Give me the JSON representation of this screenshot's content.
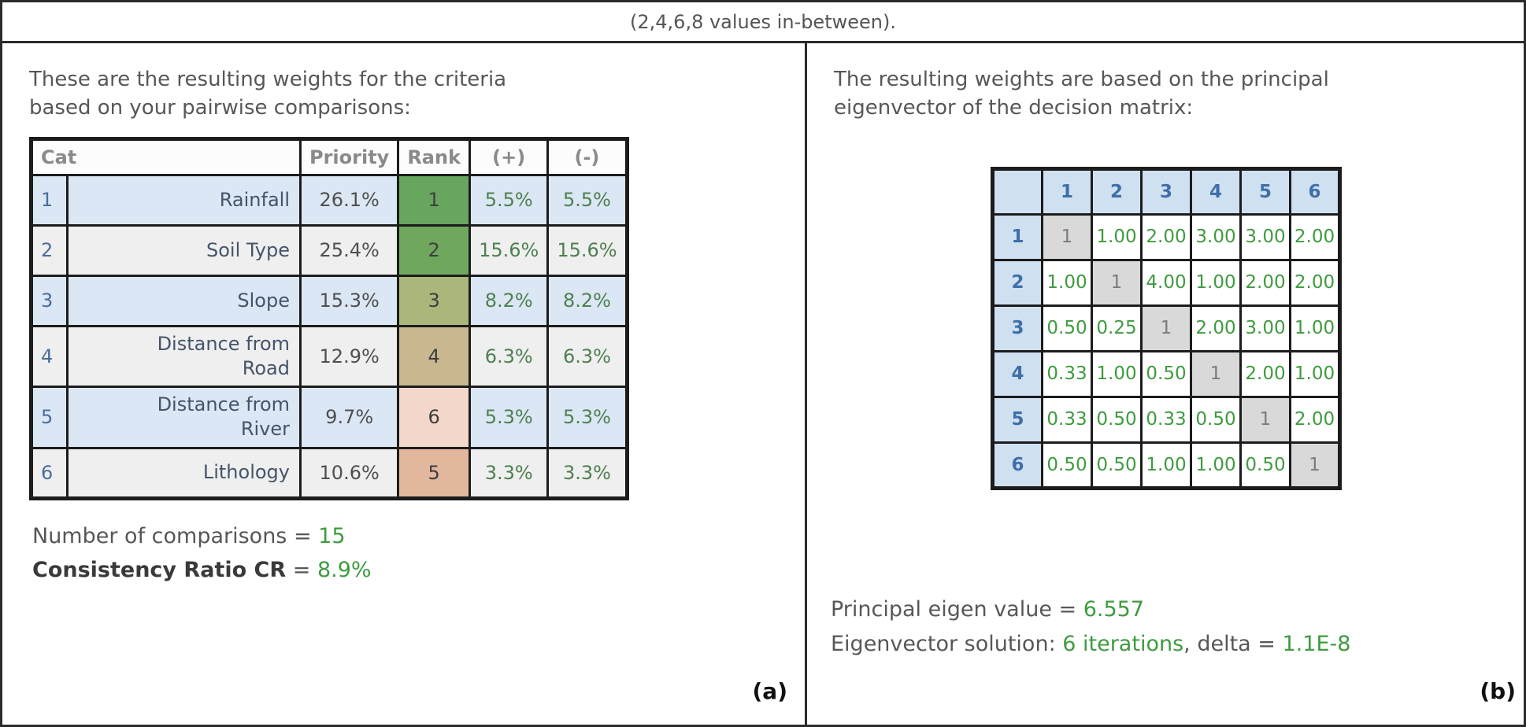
{
  "top_note": "(2,4,6,8 values in-between).",
  "colors": {
    "muted_text": "#575757",
    "header_gray": "#8a8a8a",
    "index_blue": "#4a6d9e",
    "name_text": "#44546a",
    "row_blue": "#dbe7f4",
    "row_gray": "#efefef",
    "pm_green": "#4e8050",
    "stat_green": "#3f9b3f",
    "value_green": "#3f9b3f",
    "matrix_header_bg": "#cfe0f1",
    "matrix_header_text": "#3f6fa8",
    "diagonal_gray": "#d9d9d9",
    "border_dark": "#1c1c1c"
  },
  "left": {
    "intro": "These are the resulting weights for the criteria\nbased on your pairwise comparisons:",
    "table": {
      "headers": {
        "cat": "Cat",
        "priority": "Priority",
        "rank": "Rank",
        "plus": "(+)",
        "minus": "(-)"
      },
      "rows": [
        {
          "num": "1",
          "name": "Rainfall",
          "priority": "26.1%",
          "rank": "1",
          "rank_color": "#68a55e",
          "plus": "5.5%",
          "minus": "5.5%"
        },
        {
          "num": "2",
          "name": "Soil Type",
          "priority": "25.4%",
          "rank": "2",
          "rank_color": "#6fa75c",
          "plus": "15.6%",
          "minus": "15.6%"
        },
        {
          "num": "3",
          "name": "Slope",
          "priority": "15.3%",
          "rank": "3",
          "rank_color": "#a9b87a",
          "plus": "8.2%",
          "minus": "8.2%"
        },
        {
          "num": "4",
          "name": "Distance from\nRoad",
          "priority": "12.9%",
          "rank": "4",
          "rank_color": "#c8b78f",
          "plus": "6.3%",
          "minus": "6.3%"
        },
        {
          "num": "5",
          "name": "Distance from\nRiver",
          "priority": "9.7%",
          "rank": "6",
          "rank_color": "#f3d7ca",
          "plus": "5.3%",
          "minus": "5.3%"
        },
        {
          "num": "6",
          "name": "Lithology",
          "priority": "10.6%",
          "rank": "5",
          "rank_color": "#e2b79e",
          "plus": "3.3%",
          "minus": "3.3%"
        }
      ]
    },
    "comparisons_label": "Number of comparisons",
    "comparisons_mid": " = ",
    "comparisons_value": "15",
    "cr_label": "Consistency Ratio CR",
    "cr_mid": " = ",
    "cr_value": "8.9%",
    "panel_label": "(a)"
  },
  "right": {
    "intro": "The resulting weights are based on the principal\neigenvector of the decision matrix:",
    "matrix": {
      "headers": [
        "1",
        "2",
        "3",
        "4",
        "5",
        "6"
      ],
      "rows": [
        [
          "1",
          "1.00",
          "2.00",
          "3.00",
          "3.00",
          "2.00"
        ],
        [
          "1.00",
          "1",
          "4.00",
          "1.00",
          "2.00",
          "2.00"
        ],
        [
          "0.50",
          "0.25",
          "1",
          "2.00",
          "3.00",
          "1.00"
        ],
        [
          "0.33",
          "1.00",
          "0.50",
          "1",
          "2.00",
          "1.00"
        ],
        [
          "0.33",
          "0.50",
          "0.33",
          "0.50",
          "1",
          "2.00"
        ],
        [
          "0.50",
          "0.50",
          "1.00",
          "1.00",
          "0.50",
          "1"
        ]
      ]
    },
    "eigen_label": "Principal eigen value = ",
    "eigen_value": "6.557",
    "solution_label": "Eigenvector solution: ",
    "solution_iterations": "6 iterations",
    "solution_mid": ", delta = ",
    "solution_delta": "1.1E-8",
    "panel_label": "(b)"
  }
}
